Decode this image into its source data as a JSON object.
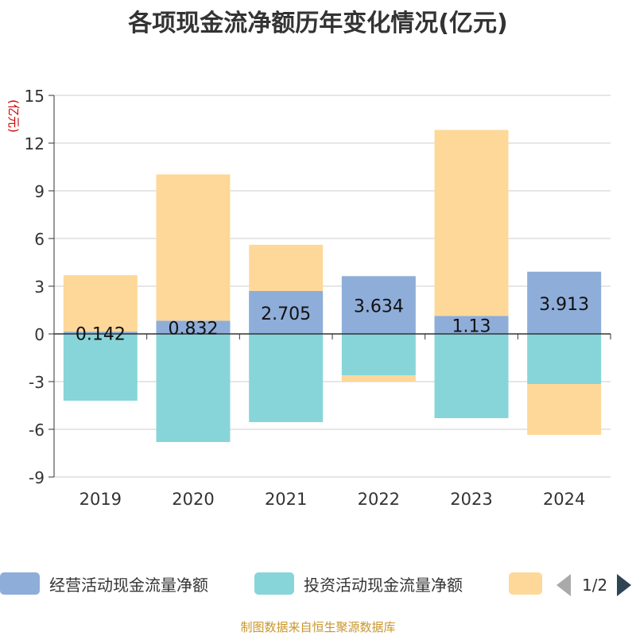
{
  "title": "各项现金流净额历年变化情况(亿元)",
  "source": "制图数据来自恒生聚源数据库",
  "colors": {
    "operating": "#8eadd9",
    "investing": "#87d5d9",
    "financing": "#fed899",
    "axis_title": "#cc0000"
  },
  "legend": {
    "items": [
      {
        "label": "经营活动现金流量净额",
        "color": "#8eadd9"
      },
      {
        "label": "投资活动现金流量净额",
        "color": "#87d5d9"
      },
      {
        "label": "",
        "color": "#fed899"
      }
    ],
    "page": "1/2"
  },
  "chart_data": {
    "type": "bar",
    "stacked": true,
    "title": "各项现金流净额历年变化情况(亿元)",
    "ylabel": "(亿元)",
    "ylim": [
      -9,
      15
    ],
    "yticks": [
      15,
      12,
      9,
      6,
      3,
      0,
      -3,
      -6,
      -9
    ],
    "grid": true,
    "legend_position": "bottom",
    "categories": [
      "2019",
      "2020",
      "2021",
      "2022",
      "2023",
      "2024"
    ],
    "series": [
      {
        "name": "经营活动现金流量净额",
        "values": [
          0.142,
          0.832,
          2.705,
          3.634,
          1.13,
          3.913
        ],
        "labels": [
          "0.142",
          "0.832",
          "2.705",
          "3.634",
          "1.13",
          "3.913"
        ]
      },
      {
        "name": "投资活动现金流量净额",
        "values": [
          -4.2,
          -6.8,
          -5.55,
          -2.6,
          -5.3,
          -3.15
        ]
      },
      {
        "values": [
          3.55,
          9.2,
          2.9,
          -0.4,
          11.7,
          -3.2
        ]
      }
    ]
  }
}
